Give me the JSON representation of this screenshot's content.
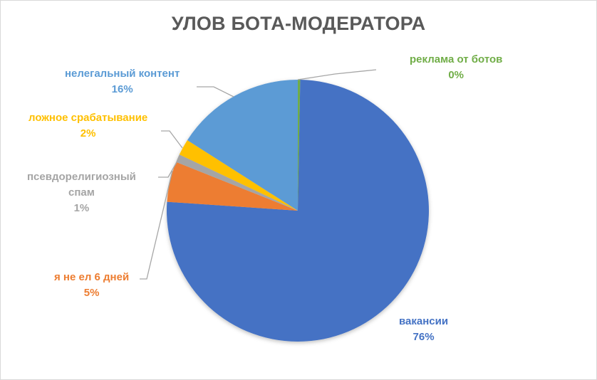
{
  "chart_data": {
    "type": "pie",
    "title": "УЛОВ БОТА-МОДЕРАТОРА",
    "slices": [
      {
        "label": "реклама от ботов",
        "value": 0.3,
        "display": "0%",
        "color": "#70ad47"
      },
      {
        "label": "вакансии",
        "value": 76,
        "display": "76%",
        "color": "#4472c4"
      },
      {
        "label": "я не ел 6 дней",
        "value": 5,
        "display": "5%",
        "color": "#ed7d31"
      },
      {
        "label": "псевдорелигиозный спам",
        "value": 1,
        "display": "1%",
        "color": "#a5a5a5"
      },
      {
        "label": "ложное срабатывание",
        "value": 2,
        "display": "2%",
        "color": "#ffc000"
      },
      {
        "label": "нелегальный контент",
        "value": 16,
        "display": "16%",
        "color": "#5b9bd5"
      }
    ],
    "legend": "none (data labels with leader lines)"
  },
  "labels": {
    "ads": {
      "name": "реклама от ботов",
      "pct": "0%"
    },
    "vacancies": {
      "name": "вакансии",
      "pct": "76%"
    },
    "hungry": {
      "name": "я не ел 6 дней",
      "pct": "5%"
    },
    "pseudo_line1": "псевдорелигиозный",
    "pseudo_line2": "спам",
    "pseudo_pct": "1%",
    "false_pos": {
      "name": "ложное срабатывание",
      "pct": "2%"
    },
    "illegal": {
      "name": "нелегальный контент",
      "pct": "16%"
    }
  }
}
